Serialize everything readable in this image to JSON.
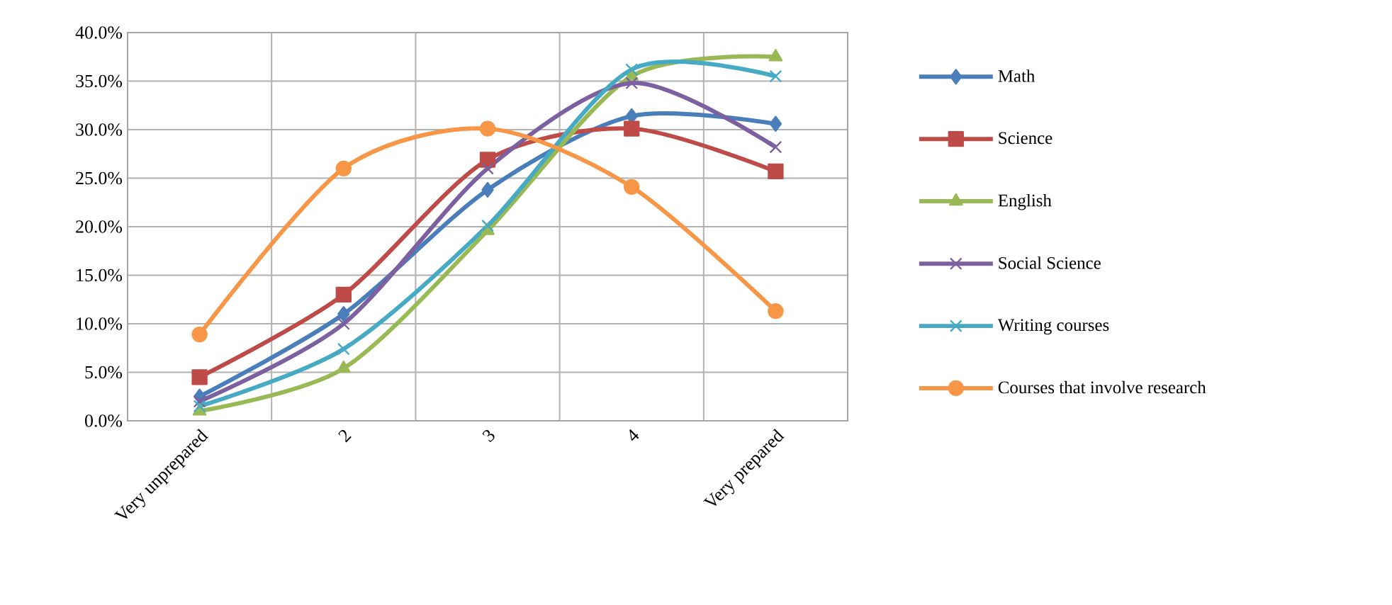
{
  "chart_data": {
    "type": "line",
    "categories": [
      "Very unprepared",
      "2",
      "3",
      "4",
      "Very prepared"
    ],
    "series": [
      {
        "name": "Math",
        "color": "#4a7ebb",
        "marker": "diamond",
        "values": [
          2.5,
          11.0,
          23.8,
          31.4,
          30.6
        ]
      },
      {
        "name": "Science",
        "color": "#be4b48",
        "marker": "square",
        "values": [
          4.5,
          13.0,
          26.9,
          30.1,
          25.7
        ]
      },
      {
        "name": "English",
        "color": "#98b954",
        "marker": "triangle",
        "values": [
          1.0,
          5.4,
          19.6,
          35.5,
          37.5
        ]
      },
      {
        "name": "Social Science",
        "color": "#7d60a0",
        "marker": "cross",
        "values": [
          2.0,
          10.0,
          26.0,
          34.8,
          28.2
        ]
      },
      {
        "name": "Writing courses",
        "color": "#46aac5",
        "marker": "cross",
        "values": [
          1.5,
          7.4,
          20.1,
          36.2,
          35.5
        ]
      },
      {
        "name": "Courses that involve research",
        "color": "#f79646",
        "marker": "circle",
        "values": [
          8.9,
          26.0,
          30.1,
          24.1,
          11.3
        ]
      }
    ],
    "ylim": [
      0,
      40
    ],
    "yticks": [
      {
        "value": 0,
        "label": "0.0%"
      },
      {
        "value": 5,
        "label": "5.0%"
      },
      {
        "value": 10,
        "label": "10.0%"
      },
      {
        "value": 15,
        "label": "15.0%"
      },
      {
        "value": 20,
        "label": "20.0%"
      },
      {
        "value": 25,
        "label": "25.0%"
      },
      {
        "value": 30,
        "label": "30.0%"
      },
      {
        "value": 35,
        "label": "35.0%"
      },
      {
        "value": 40,
        "label": "40.0%"
      }
    ],
    "grid": true,
    "legend": "right",
    "line_style": "solid"
  }
}
